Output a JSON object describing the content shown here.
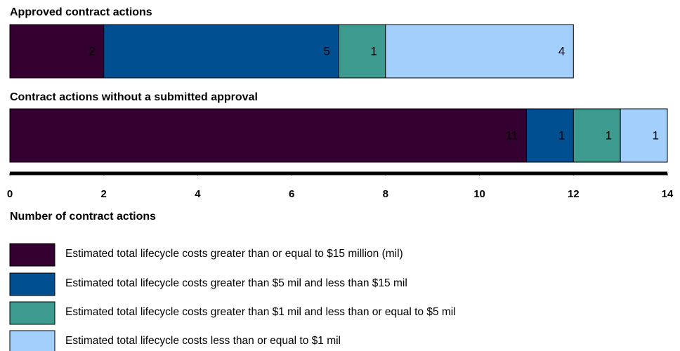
{
  "chart_data": {
    "type": "bar",
    "orientation": "horizontal",
    "stacked": true,
    "categories": [
      "Approved contract actions",
      "Contract actions without a submitted approval"
    ],
    "series": [
      {
        "name": "Estimated total lifecycle costs greater than or equal to $15 million (mil)",
        "color": "#330030",
        "values": [
          2,
          11
        ]
      },
      {
        "name": "Estimated total lifecycle costs greater than $5 mil and less than $15 mil",
        "color": "#004f91",
        "values": [
          5,
          1
        ]
      },
      {
        "name": "Estimated total lifecycle costs greater than $1 mil and less than or equal to $5 mil",
        "color": "#3d9a8f",
        "values": [
          1,
          1
        ]
      },
      {
        "name": "Estimated total lifecycle costs less than or equal to $1 mil",
        "color": "#a2cffb",
        "values": [
          4,
          1
        ]
      }
    ],
    "xlim": [
      0,
      14
    ],
    "xticks": [
      0,
      2,
      4,
      6,
      8,
      10,
      12,
      14
    ],
    "xlabel": "Number of contract actions"
  }
}
